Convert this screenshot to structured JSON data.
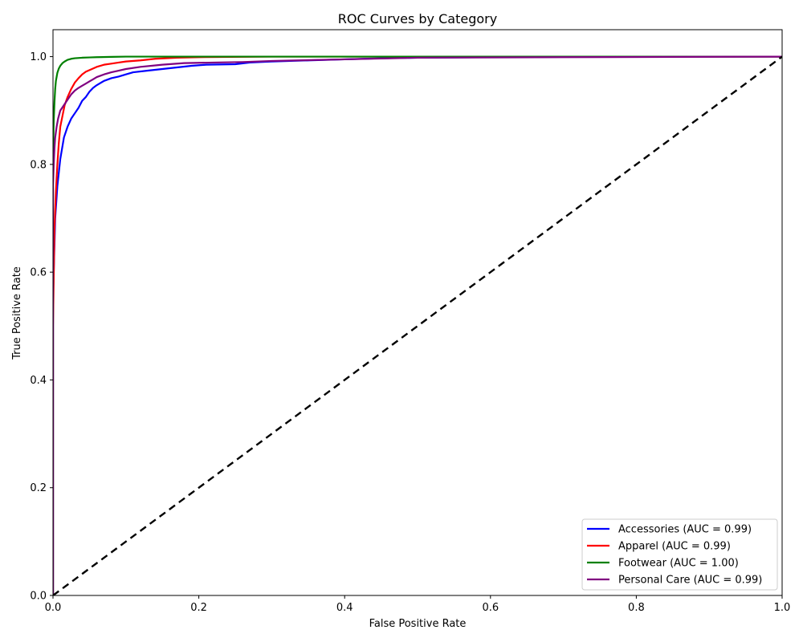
{
  "chart_data": {
    "type": "line",
    "title": "ROC Curves by Category",
    "xlabel": "False Positive Rate",
    "ylabel": "True Positive Rate",
    "xlim": [
      0.0,
      1.0
    ],
    "ylim": [
      0.0,
      1.05
    ],
    "xticks": [
      "0.0",
      "0.2",
      "0.4",
      "0.6",
      "0.8",
      "1.0"
    ],
    "yticks": [
      "0.0",
      "0.2",
      "0.4",
      "0.6",
      "0.8",
      "1.0"
    ],
    "grid": false,
    "legend_position": "lower right",
    "series": [
      {
        "name": "Accessories (AUC = 0.99)",
        "color": "#0000ff",
        "x": [
          0.0,
          0.0,
          0.003,
          0.006,
          0.01,
          0.015,
          0.02,
          0.025,
          0.03,
          0.035,
          0.04,
          0.045,
          0.05,
          0.055,
          0.06,
          0.07,
          0.08,
          0.09,
          0.1,
          0.11,
          0.13,
          0.15,
          0.17,
          0.19,
          0.21,
          0.25,
          0.27,
          0.3,
          0.35,
          0.4,
          0.45,
          0.5,
          0.6,
          0.7,
          0.8,
          0.9,
          1.0
        ],
        "y": [
          0.0,
          0.55,
          0.7,
          0.76,
          0.81,
          0.85,
          0.87,
          0.885,
          0.895,
          0.905,
          0.918,
          0.925,
          0.935,
          0.942,
          0.947,
          0.955,
          0.96,
          0.963,
          0.967,
          0.971,
          0.974,
          0.977,
          0.98,
          0.983,
          0.985,
          0.986,
          0.989,
          0.991,
          0.993,
          0.995,
          0.997,
          0.998,
          0.999,
          0.9995,
          1.0,
          1.0,
          1.0
        ]
      },
      {
        "name": "Apparel (AUC = 0.99)",
        "color": "#ff0000",
        "x": [
          0.0,
          0.0,
          0.002,
          0.004,
          0.006,
          0.008,
          0.01,
          0.013,
          0.016,
          0.02,
          0.025,
          0.03,
          0.035,
          0.04,
          0.045,
          0.05,
          0.055,
          0.06,
          0.07,
          0.08,
          0.09,
          0.1,
          0.12,
          0.14,
          0.17,
          0.2,
          0.3,
          0.5,
          1.0
        ],
        "y": [
          0.0,
          0.5,
          0.68,
          0.75,
          0.8,
          0.84,
          0.87,
          0.89,
          0.91,
          0.925,
          0.94,
          0.952,
          0.96,
          0.967,
          0.972,
          0.975,
          0.978,
          0.981,
          0.985,
          0.987,
          0.989,
          0.991,
          0.993,
          0.996,
          0.998,
          0.999,
          1.0,
          1.0,
          1.0
        ]
      },
      {
        "name": "Footwear (AUC = 1.00)",
        "color": "#008000",
        "x": [
          0.0,
          0.0,
          0.001,
          0.002,
          0.003,
          0.004,
          0.006,
          0.008,
          0.01,
          0.013,
          0.016,
          0.02,
          0.025,
          0.03,
          0.04,
          0.05,
          0.06,
          0.08,
          0.1,
          0.2,
          0.5,
          1.0
        ],
        "y": [
          0.0,
          0.82,
          0.88,
          0.915,
          0.94,
          0.955,
          0.97,
          0.978,
          0.983,
          0.988,
          0.991,
          0.994,
          0.996,
          0.997,
          0.998,
          0.9985,
          0.999,
          0.9995,
          1.0,
          1.0,
          1.0,
          1.0
        ]
      },
      {
        "name": "Personal Care (AUC = 0.99)",
        "color": "#800080",
        "x": [
          0.0,
          0.0,
          0.001,
          0.002,
          0.003,
          0.005,
          0.007,
          0.01,
          0.015,
          0.02,
          0.025,
          0.03,
          0.035,
          0.04,
          0.045,
          0.05,
          0.055,
          0.06,
          0.07,
          0.08,
          0.09,
          0.1,
          0.12,
          0.15,
          0.18,
          0.22,
          0.26,
          0.3,
          0.4,
          0.5,
          0.7,
          1.0
        ],
        "y": [
          0.0,
          0.76,
          0.8,
          0.83,
          0.85,
          0.87,
          0.885,
          0.9,
          0.91,
          0.92,
          0.93,
          0.937,
          0.942,
          0.946,
          0.95,
          0.954,
          0.958,
          0.962,
          0.967,
          0.971,
          0.974,
          0.977,
          0.981,
          0.985,
          0.988,
          0.989,
          0.99,
          0.992,
          0.995,
          0.998,
          0.999,
          1.0
        ]
      }
    ],
    "reference_line": {
      "style": "dashed",
      "color": "#000000",
      "x": [
        0.0,
        1.0
      ],
      "y": [
        0.0,
        1.0
      ]
    }
  }
}
